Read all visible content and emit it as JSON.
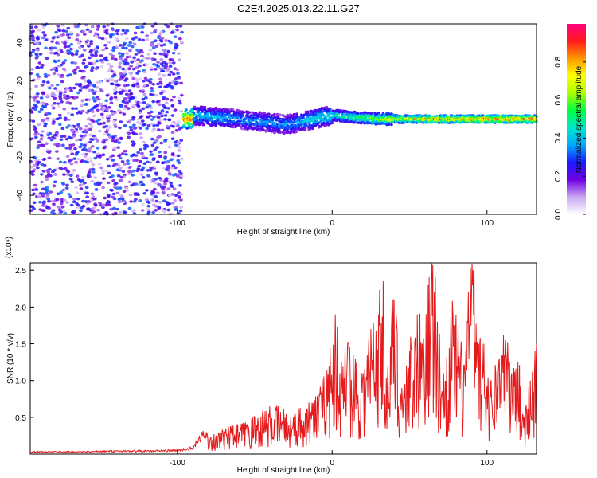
{
  "title": "C2E4.2025.013.22.11.G27",
  "chart_data": [
    {
      "type": "heatmap",
      "xlabel": "Height of straight line (km)",
      "ylabel": "Frequency (Hz)",
      "xlim": [
        -195,
        132
      ],
      "ylim": [
        -50,
        50
      ],
      "xticks": [
        -100,
        0,
        100
      ],
      "yticks": [
        -40,
        -20,
        0,
        20,
        40
      ],
      "colorbar": {
        "label": "Normalized spectral amplitude",
        "range": [
          0,
          1
        ],
        "ticks": [
          "0.0",
          "0.2",
          "0.4",
          "0.6",
          "0.8"
        ],
        "colors": [
          "#ffffff",
          "#c9a6f2",
          "#7000e0",
          "#1a1aff",
          "#00aaff",
          "#00e6cc",
          "#00ff40",
          "#aaff00",
          "#ffff00",
          "#ff9900",
          "#ff1a1a",
          "#ff0080"
        ]
      },
      "description_points": [
        {
          "x": -150,
          "y": 0,
          "note": "broadband noise region (x < -97), values ~0.1-0.3 across all frequencies"
        },
        {
          "x": -90,
          "y": 2,
          "value": 0.45
        },
        {
          "x": -60,
          "y": 0,
          "value": 0.4
        },
        {
          "x": -30,
          "y": -3,
          "value": 0.4
        },
        {
          "x": 0,
          "y": 2,
          "value": 0.5
        },
        {
          "x": 30,
          "y": 0,
          "value": 0.65
        },
        {
          "x": 60,
          "y": 0,
          "value": 0.85
        },
        {
          "x": 100,
          "y": 0,
          "value": 0.9
        },
        {
          "x": 130,
          "y": 0,
          "value": 0.9
        }
      ]
    },
    {
      "type": "line",
      "xlabel": "Height of straight line (km)",
      "ylabel": "SNR (10 * v/v)",
      "y_multiplier_label": "(x10⁴)",
      "xlim": [
        -195,
        132
      ],
      "ylim": [
        0,
        2.6
      ],
      "xticks": [
        -100,
        0,
        100
      ],
      "yticks": [
        0.5,
        1.0,
        1.5,
        2.0,
        2.5
      ],
      "color": "#e41a1c",
      "x": [
        -195,
        -180,
        -160,
        -140,
        -120,
        -100,
        -90,
        -82,
        -75,
        -65,
        -55,
        -45,
        -35,
        -25,
        -15,
        -8,
        -2,
        2,
        5,
        10,
        15,
        20,
        25,
        30,
        33,
        36,
        40,
        45,
        50,
        55,
        58,
        62,
        65,
        68,
        72,
        78,
        85,
        88,
        91,
        94,
        98,
        102,
        108,
        112,
        116,
        120,
        124,
        128,
        132
      ],
      "y": [
        0.03,
        0.03,
        0.03,
        0.04,
        0.04,
        0.05,
        0.08,
        0.3,
        0.25,
        0.35,
        0.4,
        0.55,
        0.6,
        0.5,
        0.7,
        0.8,
        1.2,
        1.9,
        1.1,
        1.5,
        1.3,
        1.1,
        1.7,
        1.9,
        2.35,
        1.2,
        2.1,
        0.9,
        1.4,
        1.9,
        1.5,
        2.3,
        2.57,
        1.8,
        1.1,
        1.9,
        1.2,
        2.2,
        2.5,
        1.4,
        1.5,
        1.0,
        1.3,
        1.55,
        1.1,
        1.25,
        0.5,
        1.0,
        1.5
      ]
    }
  ]
}
